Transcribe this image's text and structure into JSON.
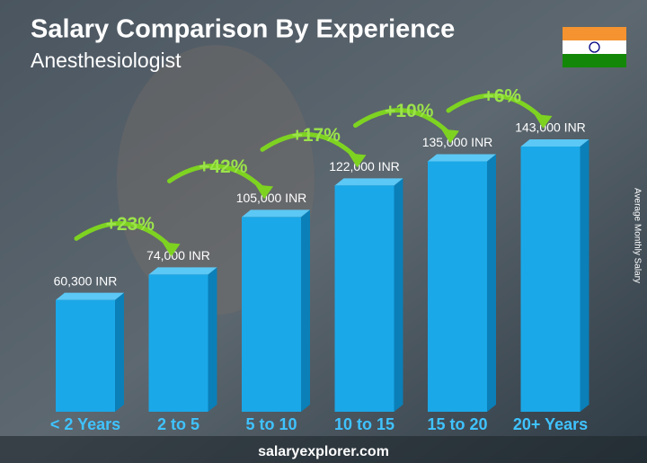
{
  "chart_data": {
    "type": "bar",
    "title": "Salary Comparison By Experience",
    "subtitle": "Anesthesiologist",
    "y_label": "Average Monthly Salary",
    "categories": [
      "< 2 Years",
      "2 to 5",
      "5 to 10",
      "10 to 15",
      "15 to 20",
      "20+ Years"
    ],
    "values": [
      60300,
      74000,
      105000,
      122000,
      135000,
      143000
    ],
    "value_labels": [
      "60,300 INR",
      "74,000 INR",
      "105,000 INR",
      "122,000 INR",
      "135,000 INR",
      "143,000 INR"
    ],
    "growth": [
      {
        "value": 23,
        "label": "+23%"
      },
      {
        "value": 42,
        "label": "+42%"
      },
      {
        "value": 17,
        "label": "+17%"
      },
      {
        "value": 10,
        "label": "+10%"
      },
      {
        "value": 6,
        "label": "+6%"
      }
    ],
    "color": "#1ba8e8",
    "source": "salaryexplorer.com"
  }
}
